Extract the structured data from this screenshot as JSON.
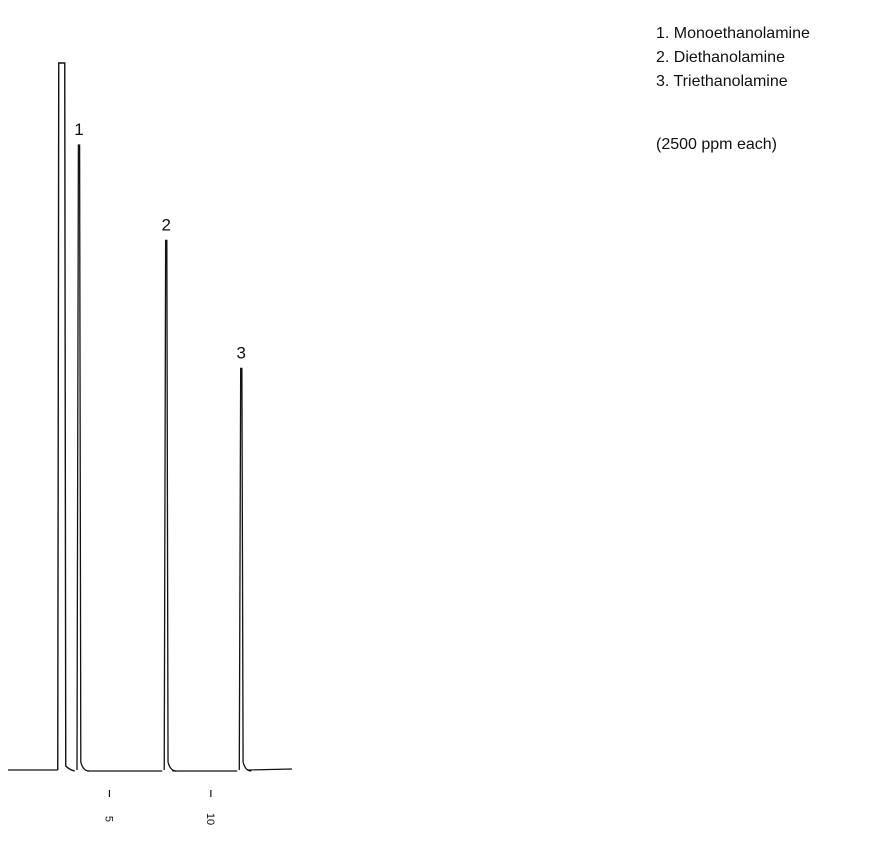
{
  "chart_data": {
    "type": "line",
    "title": "",
    "xlabel": "",
    "ylabel": "",
    "xlim": [
      0,
      14
    ],
    "ylim": [
      0,
      100
    ],
    "grid": false,
    "legend_position": "top-right",
    "x_ticks": [
      {
        "value": 5,
        "label": "5"
      },
      {
        "value": 10,
        "label": "10"
      }
    ],
    "baseline": 0,
    "solvent_peak": {
      "x": 2.6,
      "height": 100
    },
    "peaks": [
      {
        "id": "1",
        "label": "1",
        "compound": "Monoethanolamine",
        "x": 3.5,
        "height": 88.4
      },
      {
        "id": "2",
        "label": "2",
        "compound": "Diethanolamine",
        "x": 7.8,
        "height": 74.9
      },
      {
        "id": "3",
        "label": "3",
        "compound": "Triethanolamine",
        "x": 11.5,
        "height": 56.8
      }
    ]
  },
  "legend": {
    "items": [
      "1. Monoethanolamine",
      "2. Diethanolamine",
      "3. Triethanolamine"
    ],
    "note": "(2500 ppm each)"
  },
  "colors": {
    "trace": "#111111",
    "background": "#ffffff"
  }
}
